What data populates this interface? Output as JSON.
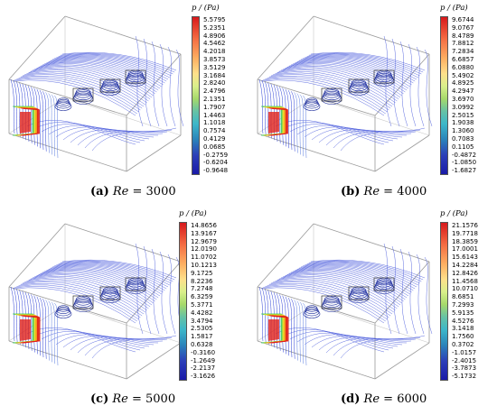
{
  "colorbar_title": "p / (Pa)",
  "panels": [
    {
      "label": "(a)",
      "re_symbol": "Re",
      "re_value": "= 3000",
      "ticks": [
        "5.5795",
        "5.2351",
        "4.8906",
        "4.5462",
        "4.2018",
        "3.8573",
        "3.5129",
        "3.1684",
        "2.8240",
        "2.4796",
        "2.1351",
        "1.7907",
        "1.4463",
        "1.1018",
        "0.7574",
        "0.4129",
        "0.0685",
        "-0.2759",
        "-0.6204",
        "-0.9648"
      ]
    },
    {
      "label": "(b)",
      "re_symbol": "Re",
      "re_value": "= 4000",
      "ticks": [
        "9.6744",
        "9.0767",
        "8.4789",
        "7.8812",
        "7.2834",
        "6.6857",
        "6.0880",
        "5.4902",
        "4.8925",
        "4.2947",
        "3.6970",
        "3.0992",
        "2.5015",
        "1.9038",
        "1.3060",
        "0.7083",
        "0.1105",
        "-0.4872",
        "-1.0850",
        "-1.6827"
      ]
    },
    {
      "label": "(c)",
      "re_symbol": "Re",
      "re_value": "= 5000",
      "ticks": [
        "14.8656",
        "13.9167",
        "12.9679",
        "12.0190",
        "11.0702",
        "10.1213",
        "9.1725",
        "8.2236",
        "7.2748",
        "6.3259",
        "5.3771",
        "4.4282",
        "3.4794",
        "2.5305",
        "1.5817",
        "0.6328",
        "-0.3160",
        "-1.2649",
        "-2.2137",
        "-3.1626"
      ]
    },
    {
      "label": "(d)",
      "re_symbol": "Re",
      "re_value": "= 6000",
      "ticks": [
        "21.1576",
        "19.7718",
        "18.3859",
        "17.0001",
        "15.6143",
        "14.2284",
        "12.8426",
        "11.4568",
        "10.0710",
        "8.6851",
        "7.2993",
        "5.9135",
        "4.5276",
        "3.1418",
        "1.7560",
        "0.3702",
        "-1.0157",
        "-2.4015",
        "-3.7873",
        "-5.1732"
      ]
    }
  ],
  "colors": {
    "box_edge": "#9a9a9a",
    "contour_blue": "#2b3fd6",
    "hot_red": "#e0201a",
    "hot_orange": "#f39a1e",
    "hot_yellow": "#e8e02a",
    "hot_green": "#3cc65a"
  }
}
